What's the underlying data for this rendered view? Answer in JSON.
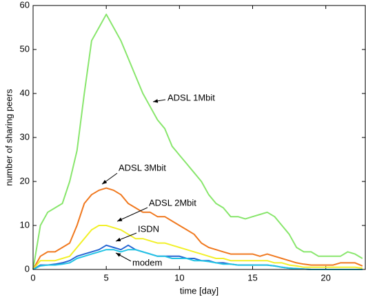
{
  "chart_data": {
    "type": "line",
    "xlabel": "time [day]",
    "ylabel": "number of sharing peers",
    "x": [
      0,
      0.5,
      1,
      1.5,
      2,
      2.5,
      3,
      3.5,
      4,
      4.5,
      5,
      5.5,
      6,
      6.5,
      7,
      7.5,
      8,
      8.5,
      9,
      9.5,
      10,
      10.5,
      11,
      11.5,
      12,
      12.5,
      13,
      13.5,
      14,
      14.5,
      15,
      15.5,
      16,
      16.5,
      17,
      17.5,
      18,
      18.5,
      19,
      19.5,
      20,
      20.5,
      21,
      21.5,
      22,
      22.5
    ],
    "series": [
      {
        "name": "ADSL 1Mbit",
        "color": "#88e66c",
        "values": [
          0,
          10,
          13,
          14,
          15,
          20,
          27,
          40,
          52,
          55,
          58,
          55,
          52,
          48,
          44,
          40,
          37,
          34,
          32,
          28,
          26,
          24,
          22,
          20,
          17,
          15,
          14,
          12,
          12,
          11.5,
          12,
          12.5,
          13,
          12,
          10,
          8,
          5,
          4,
          4,
          3,
          3,
          3,
          3,
          4,
          3.5,
          2.5
        ]
      },
      {
        "name": "ADSL 3Mbit",
        "color": "#f0781e",
        "values": [
          0,
          3,
          4,
          4,
          5,
          6,
          10,
          15,
          17,
          18,
          18.5,
          18,
          17,
          15,
          14,
          13,
          13,
          12,
          12,
          11,
          10,
          9,
          8,
          6,
          5,
          4.5,
          4,
          3.5,
          3.5,
          3.5,
          3.5,
          3,
          3.5,
          3,
          2.5,
          2,
          1.5,
          1.2,
          1,
          1,
          1,
          1,
          1.5,
          1.5,
          1.5,
          0.8
        ]
      },
      {
        "name": "ADSL 2Mbit",
        "color": "#f2f028",
        "values": [
          0,
          2,
          2,
          2,
          2.5,
          3,
          5,
          7,
          9,
          10,
          10,
          9.5,
          9,
          8,
          7,
          7,
          6.5,
          6,
          6,
          5.5,
          5,
          4.5,
          4,
          3.5,
          3,
          2.5,
          2.5,
          2,
          2,
          2,
          2,
          2,
          2,
          1.5,
          1.5,
          1,
          0.8,
          0.5,
          0.5,
          0.5,
          0.5,
          0.5,
          0.5,
          0.5,
          0.5,
          0.3
        ]
      },
      {
        "name": "ISDN",
        "color": "#2464d2",
        "values": [
          0,
          1,
          1,
          1.2,
          1.5,
          2,
          3,
          3.5,
          4,
          4.5,
          5.5,
          5,
          4.5,
          5.5,
          4.5,
          4,
          3.5,
          3,
          3,
          3,
          3,
          2.5,
          2.5,
          2,
          2,
          1.5,
          1.5,
          1.2,
          1,
          1,
          1,
          1,
          1,
          0.8,
          0.5,
          0.3,
          0.2,
          0.1,
          0,
          0,
          0,
          0,
          0,
          0,
          0,
          0
        ]
      },
      {
        "name": "modem",
        "color": "#22c4e4",
        "values": [
          0,
          0.8,
          1,
          1,
          1.2,
          1.5,
          2.5,
          3,
          3.5,
          4,
          4.5,
          4.5,
          4,
          4.5,
          4.5,
          4,
          3.5,
          3,
          3,
          2.5,
          2.5,
          2.5,
          2,
          2,
          1.8,
          1.5,
          1.2,
          1.2,
          1,
          1,
          1,
          1,
          1,
          0.8,
          0.5,
          0.3,
          0.2,
          0.1,
          0,
          0,
          0,
          0,
          0,
          0,
          0,
          0
        ]
      }
    ],
    "xlim": [
      0,
      22.7
    ],
    "xticks": [
      0,
      5,
      10,
      15,
      20
    ],
    "ylim": [
      0,
      60
    ],
    "yticks": [
      0,
      10,
      20,
      30,
      40,
      50,
      60
    ]
  }
}
